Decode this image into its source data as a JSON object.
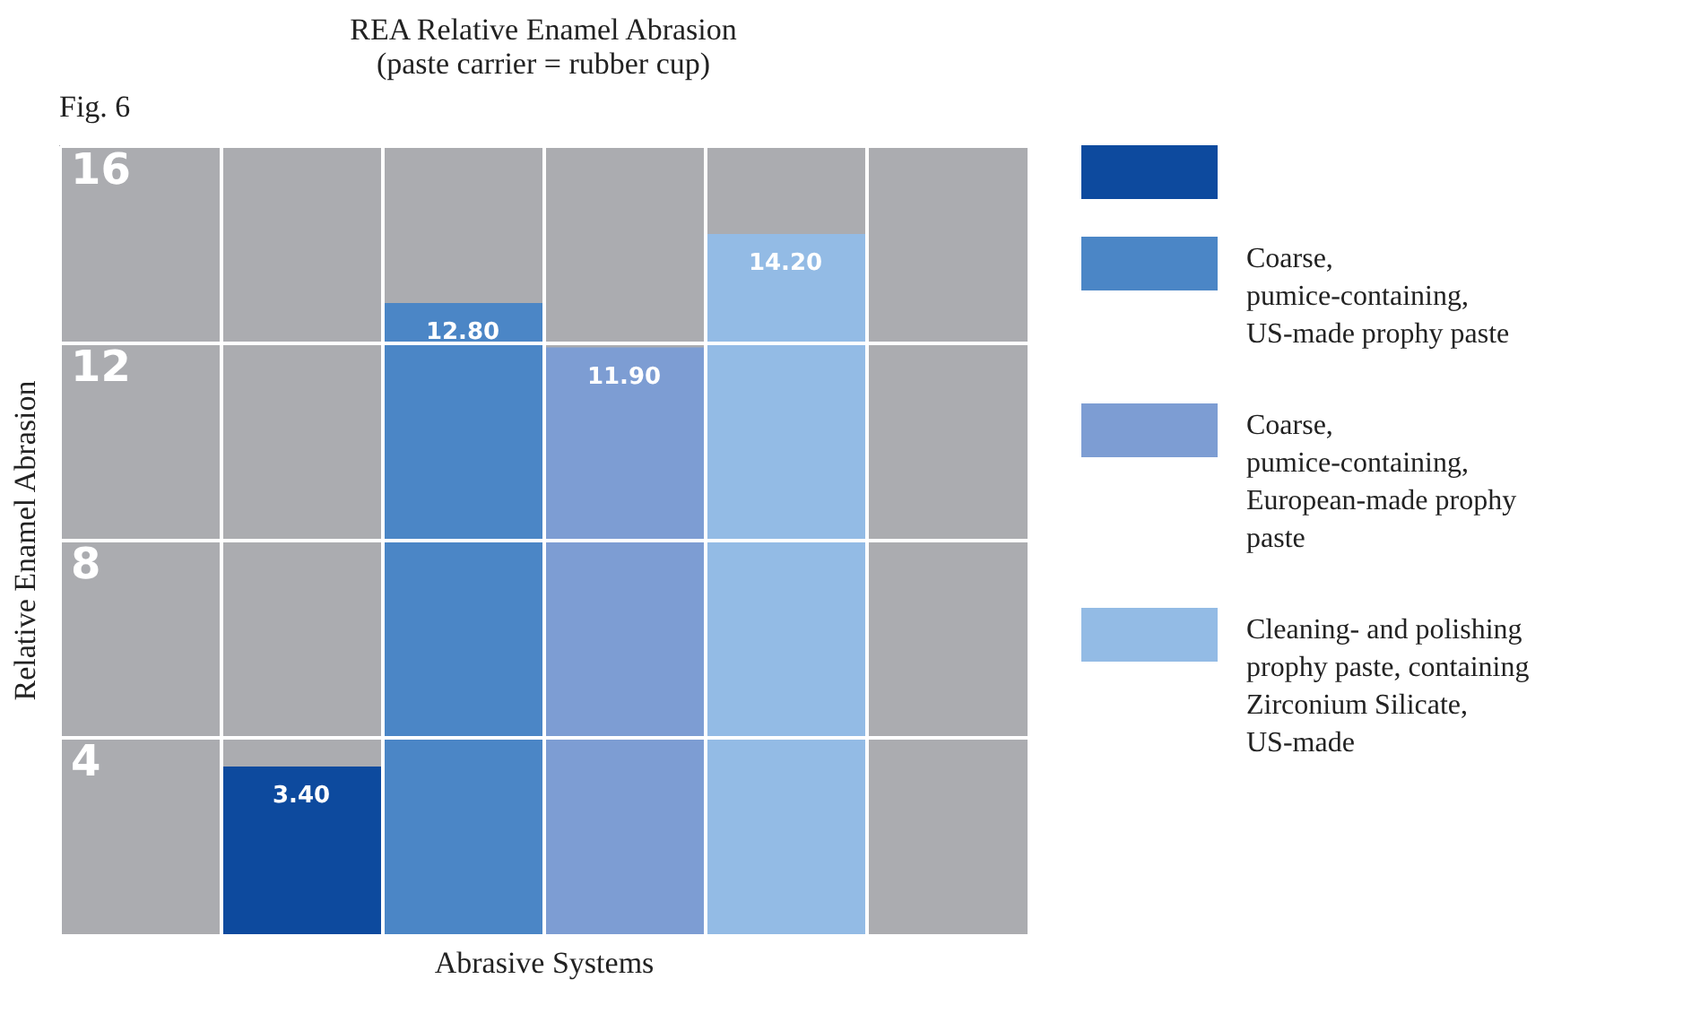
{
  "chart_data": {
    "type": "bar",
    "title": "REA Relative Enamel Abrasion",
    "subtitle": "(paste carrier = rubber cup)",
    "xlabel": "Abrasive Systems",
    "ylabel": "Relative Enamel Abrasion",
    "annotations": [
      "Fig. 6"
    ],
    "categories": [
      null,
      null,
      null,
      null,
      null,
      null
    ],
    "series": [
      {
        "color": "#0d4a9e",
        "values": [
          null,
          3.4,
          null,
          null,
          null,
          null
        ],
        "value_labels": [
          null,
          "3.40",
          null,
          null,
          null,
          null
        ]
      },
      {
        "name": "Coarse, pumice-containing, US-made prophy paste",
        "color": "#4b86c6",
        "values": [
          null,
          null,
          12.8,
          null,
          null,
          null
        ],
        "value_labels": [
          null,
          null,
          "12.80",
          null,
          null,
          null
        ]
      },
      {
        "name": "Coarse, pumice-containing, European-made prophy paste",
        "color": "#7d9dd3",
        "values": [
          null,
          null,
          null,
          11.9,
          null,
          null
        ],
        "value_labels": [
          null,
          null,
          null,
          "11.90",
          null,
          null
        ]
      },
      {
        "name": "Cleaning- and polishing prophy paste, containing Zirconium Silicate, US-made",
        "color": "#93bbe5",
        "values": [
          null,
          null,
          null,
          null,
          14.2,
          null
        ],
        "value_labels": [
          null,
          null,
          null,
          null,
          "14.20",
          null
        ]
      }
    ],
    "ylim": [
      0,
      16
    ],
    "yticks": [
      4,
      8,
      12,
      16
    ],
    "grid": true,
    "legend": "right"
  }
}
